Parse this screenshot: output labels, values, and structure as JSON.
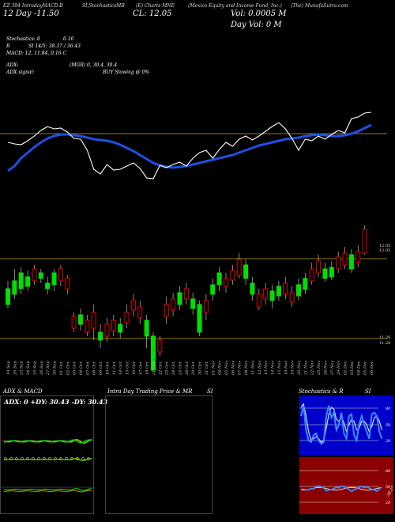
{
  "header": {
    "col1": "EZ 394 IntradayMACD.B",
    "col2": "SI,StochasticsMR",
    "col3": "(E) Charts MNE",
    "col4": "(Mexico Equity and Income Fund, Inc.)",
    "col5": "(The) MunafaSutra.com",
    "date_line": "12 Day   -11.50",
    "close": "CL: 12.05",
    "volume": "Vol: 0.0005 M",
    "day_vol": "Day Vol: 0  M"
  },
  "stats": {
    "stoch": "Stochastics: 8",
    "stoch_val": "6.16",
    "rsi": "SI 14/5: 38.37 / 36.43",
    "rsi_prefix": "R",
    "macd": "MACD: 12, 11.84, 0.16  C",
    "adx": "ADX:",
    "adx_val": "(MGR) 0, 30.4,  30.4",
    "adx_signal": "ADX  signal:",
    "buy_signal": "BUY Slowing @ 0%"
  },
  "price_axis": {
    "top_a": "12.05",
    "top_b": "12.05",
    "low_a": "11.26",
    "low_b": "11.26"
  },
  "dates": [
    "19 Sep",
    "20 Sep",
    "23 Sep",
    "24 Sep",
    "25 Sep",
    "26 Sep",
    "27 Sep",
    "30 Sep",
    "01 Oct",
    "02 Oct",
    "03 Oct",
    "04 Oct",
    "07 Oct",
    "08 Oct",
    "09 Oct",
    "10 Oct",
    "11 Oct",
    "14 Oct",
    "15 Oct",
    "16 Oct",
    "17 Oct",
    "18 Oct",
    "21 Oct",
    "22 Oct",
    "23 Oct",
    "24 Oct",
    "25 Oct",
    "28 Oct",
    "29 Oct",
    "30 Oct",
    "31 Oct",
    "01 Nov",
    "04 Nov",
    "05 Nov",
    "06 Nov",
    "07 Nov",
    "08 Nov",
    "11 Nov",
    "12 Nov",
    "13 Nov",
    "14 Nov",
    "15 Nov",
    "18 Nov",
    "19 Nov",
    "20 Nov",
    "21 Nov",
    "22 Nov",
    "25 Nov",
    "26 Nov",
    "27 Nov",
    "29 Nov",
    "02 Dec",
    "03 Dec",
    "04 Dec",
    "05 Dec",
    "06 Dec"
  ],
  "panels": {
    "adx_title": "ADX  & MACD",
    "adx_readout": "ADX: 0  +DY: 30.43 -DY: 30.43",
    "intraday_title": "Intra  Day Trading Price  & MR",
    "intraday_title_suffix": "SI",
    "stoch_title": "Stochastics & R",
    "stoch_title_suffix": "SI",
    "stoch_levels": [
      "80",
      "50",
      "20"
    ],
    "rsi_levels": [
      "80",
      "50",
      "20"
    ],
    "rsi_value": "38.37"
  },
  "colors": {
    "up": "#00e000",
    "down": "#e00000",
    "ma": "#1e4fe0",
    "gold": "#c9a227",
    "rsi_bg": "#8b0000",
    "stoch_bg": "#0000c8"
  }
}
